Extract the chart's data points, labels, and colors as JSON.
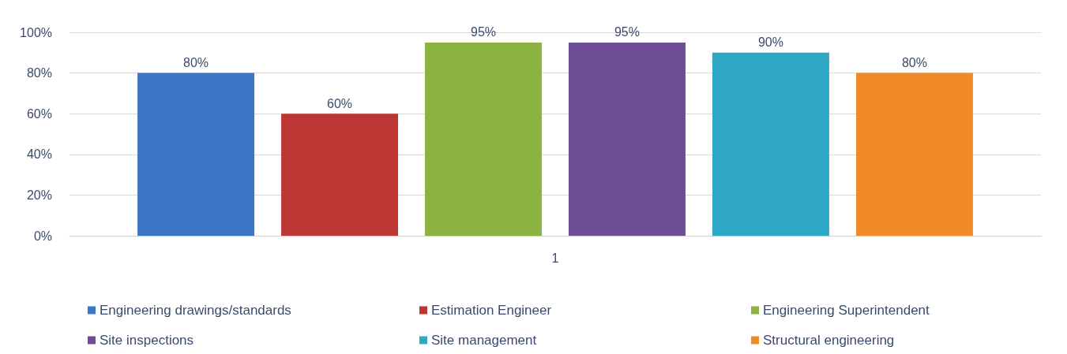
{
  "chart_data": {
    "type": "bar",
    "categories": [
      "1"
    ],
    "series": [
      {
        "name": "Engineering drawings/standards",
        "color": "#3b76c4",
        "values": [
          80
        ],
        "value_labels": [
          "80%"
        ]
      },
      {
        "name": "Estimation Engineer",
        "color": "#bd3634",
        "values": [
          60
        ],
        "value_labels": [
          "60%"
        ]
      },
      {
        "name": "Engineering Superintendent",
        "color": "#8cb23f",
        "values": [
          95
        ],
        "value_labels": [
          "95%"
        ]
      },
      {
        "name": "Site inspections",
        "color": "#6d4e95",
        "values": [
          95
        ],
        "value_labels": [
          "95%"
        ]
      },
      {
        "name": "Site management",
        "color": "#2fa8c6",
        "values": [
          90
        ],
        "value_labels": [
          "90%"
        ]
      },
      {
        "name": "Structural engineering",
        "color": "#ef8a25",
        "values": [
          80
        ],
        "value_labels": [
          "80%"
        ]
      }
    ],
    "ylim": [
      0,
      100
    ],
    "yticks": [
      {
        "value": 0,
        "label": "0%"
      },
      {
        "value": 20,
        "label": "20%"
      },
      {
        "value": 40,
        "label": "40%"
      },
      {
        "value": 60,
        "label": "60%"
      },
      {
        "value": 80,
        "label": "80%"
      },
      {
        "value": 100,
        "label": "100%"
      }
    ],
    "grid": "y",
    "legend": "bottom"
  }
}
